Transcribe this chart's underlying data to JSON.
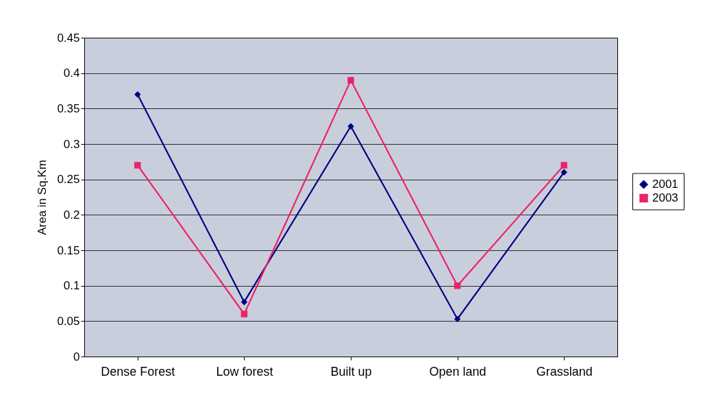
{
  "chart_data": {
    "type": "line",
    "ylabel": "Area in Sq.Km",
    "categories": [
      "Dense Forest",
      "Low forest",
      "Built up",
      "Open land",
      "Grassland"
    ],
    "series": [
      {
        "name": "2001",
        "color": "#000080",
        "marker": "diamond",
        "values": [
          0.37,
          0.077,
          0.325,
          0.053,
          0.26
        ]
      },
      {
        "name": "2003",
        "color": "#ee2266",
        "marker": "square",
        "values": [
          0.27,
          0.06,
          0.39,
          0.1,
          0.27
        ]
      }
    ],
    "ylim": [
      0,
      0.45
    ],
    "yticks": [
      0,
      0.05,
      0.1,
      0.15,
      0.2,
      0.25,
      0.3,
      0.35,
      0.4,
      0.45
    ],
    "grid": "y",
    "legend": "right",
    "line_style": "solid"
  }
}
